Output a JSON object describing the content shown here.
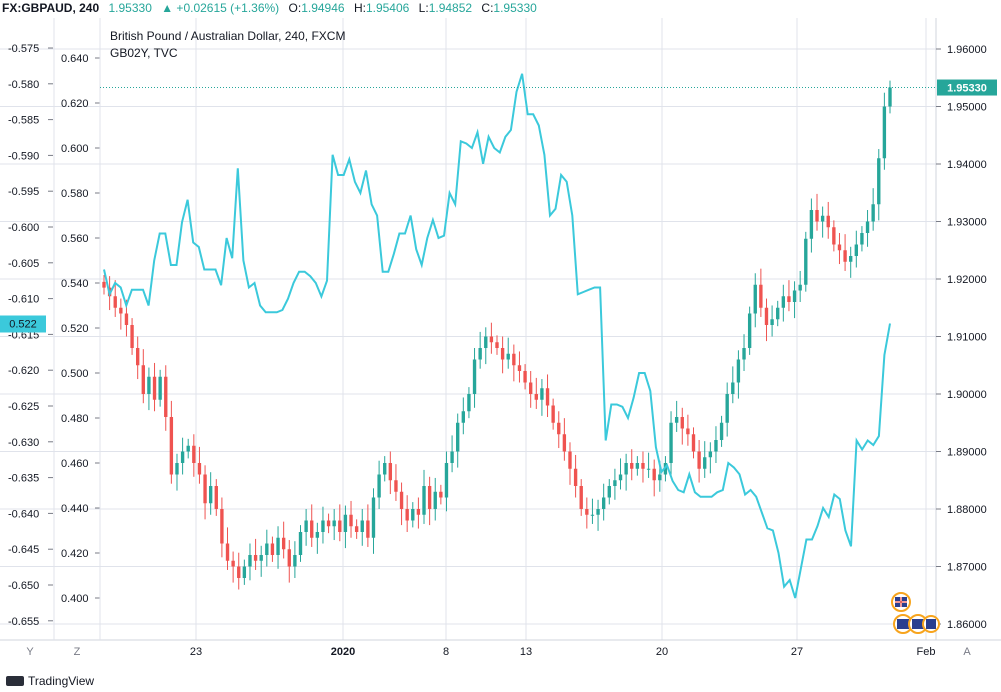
{
  "header": {
    "symbol": "FX:GBPAUD, 240",
    "last": "1.95330",
    "change": "▲ +0.02615 (+1.36%)",
    "open_label": "O:",
    "open": "1.94946",
    "high_label": "H:",
    "high": "1.95406",
    "low_label": "L:",
    "low": "1.94852",
    "close_label": "C:",
    "close": "1.95330"
  },
  "legend": {
    "main_title": "British Pound / Australian Dollar, 240, FXCM",
    "overlay_title": "GB02Y, TVC"
  },
  "footer": {
    "brand": "TradingView",
    "left_scale_btn": "Y",
    "left_zoom_btn": "Z",
    "auto_btn": "A"
  },
  "colors": {
    "up": "#26a69a",
    "down": "#ef5350",
    "overlay_line": "#3bc9db",
    "grid": "#e0e3eb",
    "price_tag": "#26a69a",
    "overlay_tag": "#3bc9db"
  },
  "chart_data": {
    "type": "line",
    "x_tick_labels": [
      "23",
      "2020",
      "8",
      "13",
      "20",
      "27",
      "Feb"
    ],
    "left_outer_axis": {
      "ticks": [
        "-0.575",
        "-0.580",
        "-0.585",
        "-0.590",
        "-0.595",
        "-0.600",
        "-0.605",
        "-0.610",
        "-0.615",
        "-0.620",
        "-0.625",
        "-0.630",
        "-0.635",
        "-0.640",
        "-0.645",
        "-0.650",
        "-0.655"
      ]
    },
    "left_inner_axis": {
      "ticks": [
        "0.640",
        "0.620",
        "0.600",
        "0.580",
        "0.560",
        "0.540",
        "0.520",
        "0.500",
        "0.480",
        "0.460",
        "0.440",
        "0.420",
        "0.400"
      ],
      "current_value_tag": "0.522"
    },
    "right_axis": {
      "ticks": [
        "1.96000",
        "1.95000",
        "1.94000",
        "1.93000",
        "1.92000",
        "1.91000",
        "1.90000",
        "1.89000",
        "1.88000",
        "1.87000",
        "1.86000"
      ],
      "current_value_tag": "1.95330",
      "range": [
        1.857,
        1.9625
      ]
    },
    "gbpaud_close": [
      1.9185,
      1.917,
      1.915,
      1.914,
      1.912,
      1.908,
      1.905,
      1.9,
      1.903,
      1.899,
      1.903,
      1.896,
      1.886,
      1.888,
      1.89,
      1.891,
      1.888,
      1.886,
      1.881,
      1.884,
      1.88,
      1.874,
      1.871,
      1.87,
      1.868,
      1.87,
      1.872,
      1.871,
      1.872,
      1.874,
      1.872,
      1.875,
      1.873,
      1.87,
      1.872,
      1.876,
      1.878,
      1.875,
      1.876,
      1.878,
      1.877,
      1.878,
      1.876,
      1.879,
      1.877,
      1.876,
      1.878,
      1.875,
      1.882,
      1.886,
      1.888,
      1.885,
      1.883,
      1.88,
      1.878,
      1.88,
      1.879,
      1.884,
      1.88,
      1.883,
      1.882,
      1.888,
      1.89,
      1.895,
      1.897,
      1.9,
      1.906,
      1.908,
      1.91,
      1.909,
      1.908,
      1.906,
      1.907,
      1.905,
      1.904,
      1.902,
      1.9,
      1.899,
      1.901,
      1.898,
      1.895,
      1.893,
      1.89,
      1.887,
      1.884,
      1.88,
      1.879,
      1.879,
      1.88,
      1.882,
      1.884,
      1.885,
      1.886,
      1.888,
      1.887,
      1.888,
      1.887,
      1.887,
      1.885,
      1.886,
      1.888,
      1.895,
      1.896,
      1.894,
      1.893,
      1.89,
      1.887,
      1.889,
      1.89,
      1.892,
      1.895,
      1.9,
      1.902,
      1.906,
      1.908,
      1.914,
      1.919,
      1.915,
      1.912,
      1.913,
      1.915,
      1.917,
      1.916,
      1.918,
      1.919,
      1.927,
      1.932,
      1.93,
      1.931,
      1.929,
      1.926,
      1.925,
      1.923,
      1.924,
      1.926,
      1.928,
      1.93,
      1.933,
      1.941,
      1.95,
      1.9533
    ],
    "gb02y_line": [
      0.546,
      0.535,
      0.54,
      0.538,
      0.53,
      0.537,
      0.537,
      0.537,
      0.53,
      0.55,
      0.562,
      0.562,
      0.548,
      0.548,
      0.567,
      0.577,
      0.558,
      0.556,
      0.546,
      0.546,
      0.546,
      0.539,
      0.56,
      0.551,
      0.591,
      0.55,
      0.538,
      0.54,
      0.53,
      0.527,
      0.527,
      0.527,
      0.528,
      0.533,
      0.54,
      0.545,
      0.545,
      0.543,
      0.54,
      0.534,
      0.541,
      0.597,
      0.588,
      0.588,
      0.595,
      0.585,
      0.58,
      0.59,
      0.575,
      0.57,
      0.545,
      0.545,
      0.553,
      0.562,
      0.562,
      0.57,
      0.555,
      0.548,
      0.56,
      0.568,
      0.56,
      0.561,
      0.58,
      0.575,
      0.603,
      0.602,
      0.6,
      0.607,
      0.593,
      0.605,
      0.6,
      0.598,
      0.605,
      0.608,
      0.625,
      0.633,
      0.615,
      0.615,
      0.61,
      0.597,
      0.57,
      0.573,
      0.588,
      0.585,
      0.57,
      0.535,
      0.536,
      0.537,
      0.538,
      0.538,
      0.47,
      0.486,
      0.486,
      0.485,
      0.48,
      0.489,
      0.5,
      0.5,
      0.492,
      0.467,
      0.456,
      0.459,
      0.452,
      0.448,
      0.447,
      0.455,
      0.447,
      0.445,
      0.445,
      0.445,
      0.447,
      0.448,
      0.46,
      0.458,
      0.455,
      0.446,
      0.448,
      0.445,
      0.438,
      0.431,
      0.43,
      0.42,
      0.405,
      0.408,
      0.4,
      0.413,
      0.426,
      0.426,
      0.432,
      0.44,
      0.436,
      0.446,
      0.444,
      0.43,
      0.423,
      0.47,
      0.466,
      0.47,
      0.468,
      0.472,
      0.508,
      0.522
    ]
  }
}
